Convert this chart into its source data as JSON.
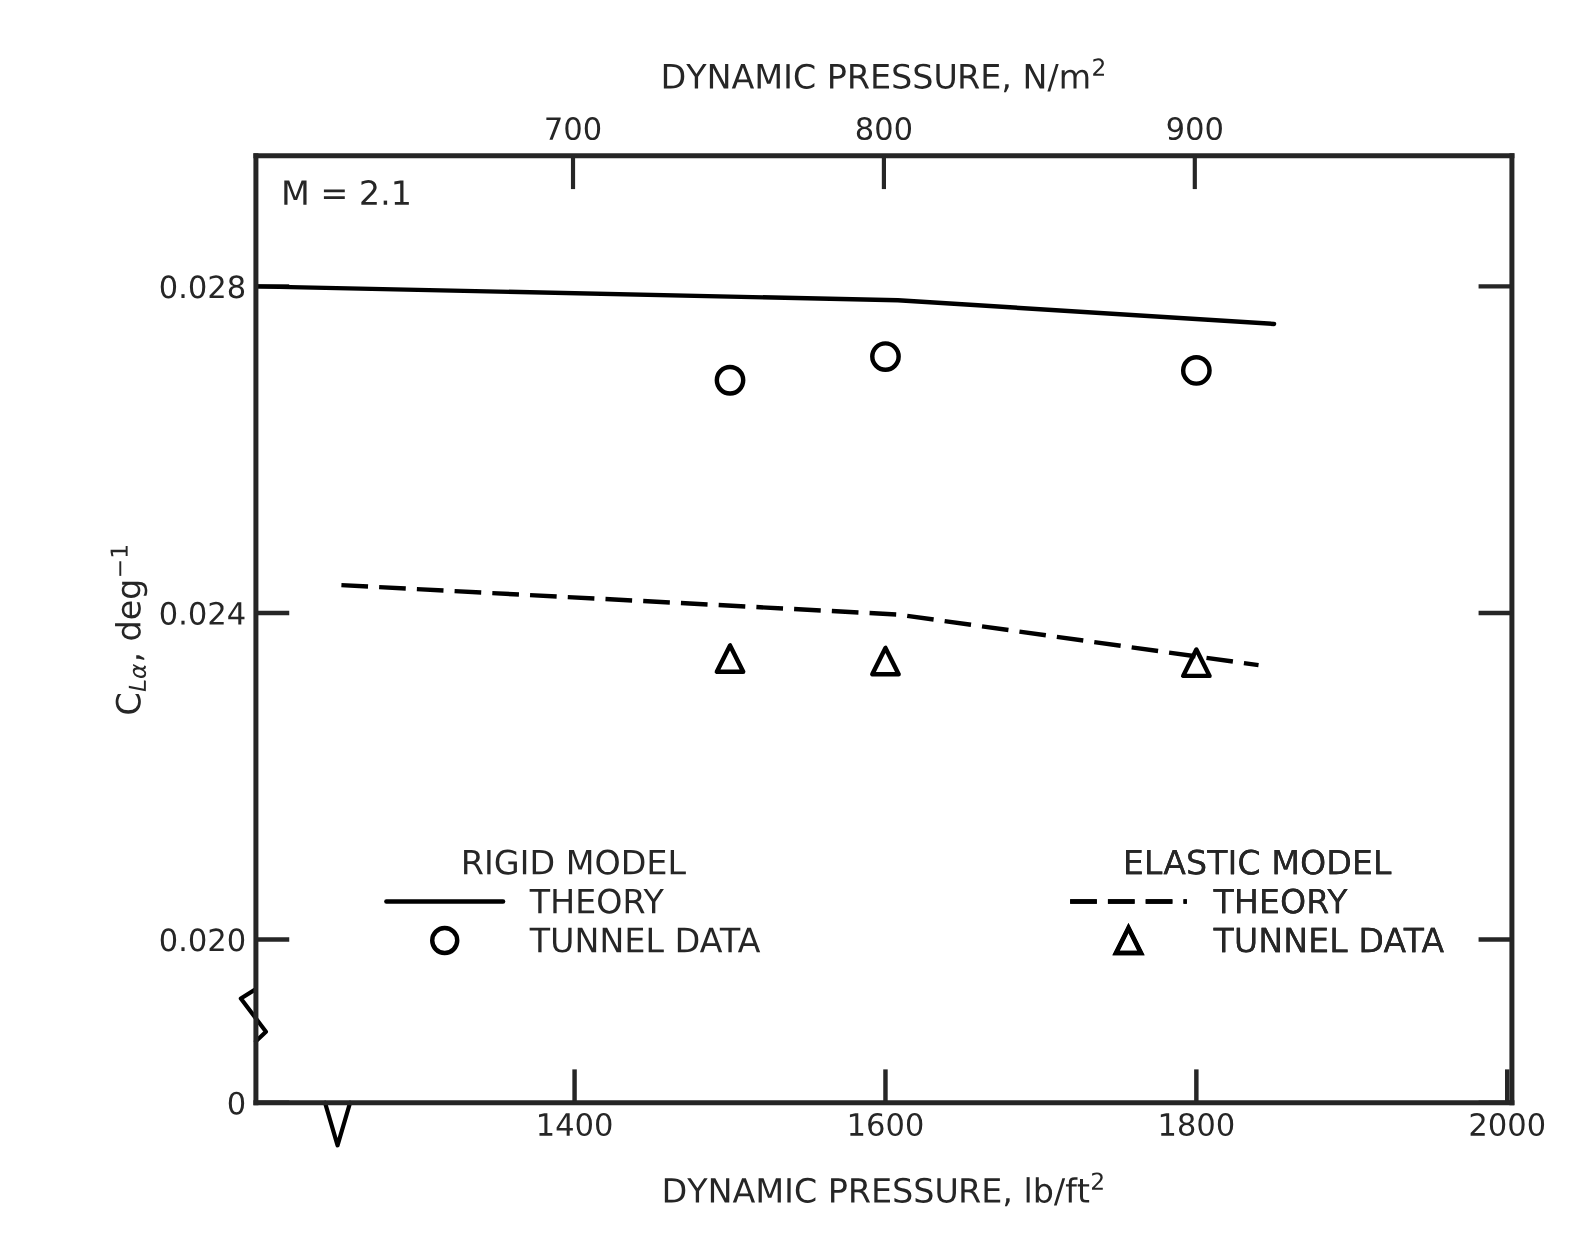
{
  "chart_data": {
    "type": "line",
    "xlabel": "DYNAMIC PRESSURE, lb/ft$^{2}$",
    "x2label": "DYNAMIC PRESSURE, N/m$^{2}$",
    "ylabel": "C$_{Lα}$, deg$^{−1}$",
    "annotations": [
      "M = 2.1",
      "RIGID MODEL",
      "ELASTIC MODEL"
    ],
    "xlim": [
      1195,
      2003
    ],
    "xticks": [
      1400,
      1600,
      1800,
      2000
    ],
    "x2lim": [
      598,
      1002
    ],
    "x2ticks": [
      700,
      800,
      900
    ],
    "ylim": [
      0.018,
      0.0296
    ],
    "yticks": [
      {
        "value": 0.018,
        "label": "0"
      },
      {
        "value": 0.02,
        "label": "0.020"
      },
      0.024,
      0.028
    ],
    "legend": "bottom",
    "grid": false,
    "series": [
      {
        "name": "THEORY",
        "line_style": "solid",
        "marker": "none",
        "color": "#000000",
        "x": [
          1195,
          1608,
          1850
        ],
        "values": [
          0.028,
          0.02783,
          0.02754
        ]
      },
      {
        "name": "TUNNEL DATA",
        "type": "scatter",
        "marker": "circle",
        "color": "#000000",
        "x": [
          1500,
          1600,
          1800
        ],
        "values": [
          0.02685,
          0.02714,
          0.02697
        ]
      },
      {
        "name": "THEORY",
        "line_style": "dashed",
        "marker": "none",
        "color": "#000000",
        "x": [
          1250,
          1608,
          1840
        ],
        "values": [
          0.02434,
          0.02398,
          0.02336
        ]
      },
      {
        "name": "TUNNEL DATA",
        "type": "scatter",
        "marker": "triangle",
        "color": "#000000",
        "x": [
          1500,
          1600,
          1800
        ],
        "values": [
          0.02344,
          0.02341,
          0.02339
        ]
      }
    ]
  }
}
